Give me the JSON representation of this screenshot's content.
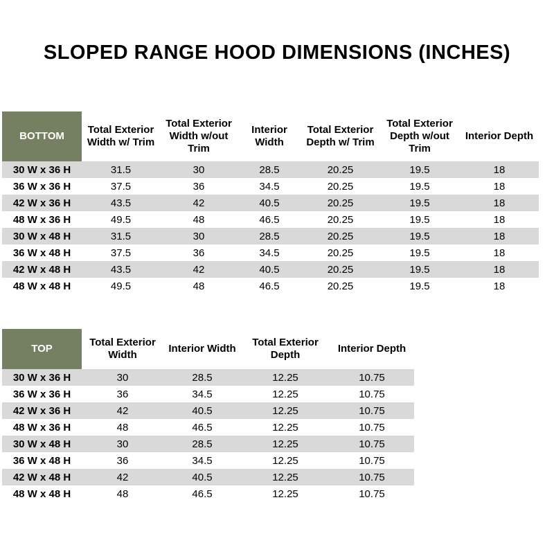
{
  "title": "SLOPED RANGE HOOD DIMENSIONS (INCHES)",
  "colors": {
    "header_green": "#758062",
    "stripe_gray": "#d9d9d9",
    "header_text": "#ffffff",
    "body_text": "#000000"
  },
  "tables": [
    {
      "name": "BOTTOM",
      "columns": [
        "Total Exterior Width w/ Trim",
        "Total Exterior Width w/out Trim",
        "Interior Width",
        "Total Exterior Depth w/ Trim",
        "Total Exterior Depth w/out Trim",
        "Interior Depth"
      ],
      "rows": [
        {
          "label": "30 W x 36 H",
          "values": [
            "31.5",
            "30",
            "28.5",
            "20.25",
            "19.5",
            "18"
          ]
        },
        {
          "label": "36 W x 36 H",
          "values": [
            "37.5",
            "36",
            "34.5",
            "20.25",
            "19.5",
            "18"
          ]
        },
        {
          "label": "42 W x 36 H",
          "values": [
            "43.5",
            "42",
            "40.5",
            "20.25",
            "19.5",
            "18"
          ]
        },
        {
          "label": "48 W x 36 H",
          "values": [
            "49.5",
            "48",
            "46.5",
            "20.25",
            "19.5",
            "18"
          ]
        },
        {
          "label": "30 W x 48 H",
          "values": [
            "31.5",
            "30",
            "28.5",
            "20.25",
            "19.5",
            "18"
          ]
        },
        {
          "label": "36 W x 48 H",
          "values": [
            "37.5",
            "36",
            "34.5",
            "20.25",
            "19.5",
            "18"
          ]
        },
        {
          "label": "42 W x 48 H",
          "values": [
            "43.5",
            "42",
            "40.5",
            "20.25",
            "19.5",
            "18"
          ]
        },
        {
          "label": "48 W x 48 H",
          "values": [
            "49.5",
            "48",
            "46.5",
            "20.25",
            "19.5",
            "18"
          ]
        }
      ]
    },
    {
      "name": "TOP",
      "columns": [
        "Total Exterior Width",
        "Interior Width",
        "Total Exterior Depth",
        "Interior Depth"
      ],
      "rows": [
        {
          "label": "30 W x 36 H",
          "values": [
            "30",
            "28.5",
            "12.25",
            "10.75"
          ]
        },
        {
          "label": "36 W x 36 H",
          "values": [
            "36",
            "34.5",
            "12.25",
            "10.75"
          ]
        },
        {
          "label": "42 W x 36 H",
          "values": [
            "42",
            "40.5",
            "12.25",
            "10.75"
          ]
        },
        {
          "label": "48 W x 36 H",
          "values": [
            "48",
            "46.5",
            "12.25",
            "10.75"
          ]
        },
        {
          "label": "30 W x 48 H",
          "values": [
            "30",
            "28.5",
            "12.25",
            "10.75"
          ]
        },
        {
          "label": "36 W x 48 H",
          "values": [
            "36",
            "34.5",
            "12.25",
            "10.75"
          ]
        },
        {
          "label": "42 W x 48 H",
          "values": [
            "42",
            "40.5",
            "12.25",
            "10.75"
          ]
        },
        {
          "label": "48 W x 48 H",
          "values": [
            "48",
            "46.5",
            "12.25",
            "10.75"
          ]
        }
      ]
    }
  ]
}
